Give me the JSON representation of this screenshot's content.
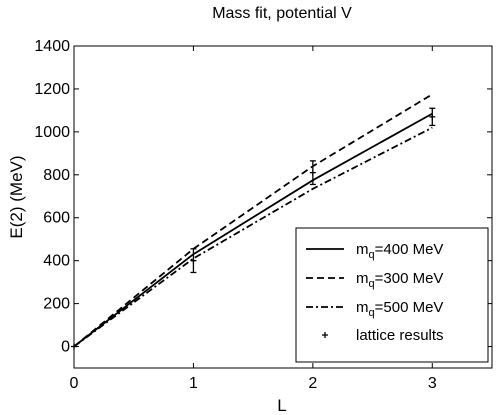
{
  "chart_data": {
    "type": "line",
    "title": "Mass fit, potential V",
    "xlabel": "L",
    "ylabel": "E(2) (MeV)",
    "xlim": [
      0,
      3.5
    ],
    "ylim": [
      -100,
      1400
    ],
    "x_ticks": [
      0,
      1,
      2,
      3
    ],
    "y_ticks": [
      0,
      200,
      400,
      600,
      800,
      1000,
      1200,
      1400
    ],
    "grid": false,
    "legend_position": "bottom-right",
    "series": [
      {
        "name": "m_q=400 MeV",
        "label_main": "m",
        "label_sub": "q",
        "label_rest": "=400 MeV",
        "style": "solid",
        "x": [
          0,
          1,
          2,
          3
        ],
        "y": [
          0,
          430,
          775,
          1085
        ]
      },
      {
        "name": "m_q=300 MeV",
        "label_main": "m",
        "label_sub": "q",
        "label_rest": "=300 MeV",
        "style": "dashed",
        "x": [
          0,
          1,
          2,
          3
        ],
        "y": [
          0,
          455,
          840,
          1175
        ]
      },
      {
        "name": "m_q=500 MeV",
        "label_main": "m",
        "label_sub": "q",
        "label_rest": "=500 MeV",
        "style": "dashdot",
        "x": [
          0,
          1,
          2,
          3
        ],
        "y": [
          0,
          410,
          735,
          1020
        ]
      }
    ],
    "lattice_results": {
      "name": "lattice results",
      "points": [
        {
          "x": 0,
          "y": 0,
          "err": 0
        },
        {
          "x": 1,
          "y": 400,
          "err": 55
        },
        {
          "x": 2,
          "y": 810,
          "err": 55
        },
        {
          "x": 3,
          "y": 1070,
          "err": 40
        }
      ]
    }
  }
}
